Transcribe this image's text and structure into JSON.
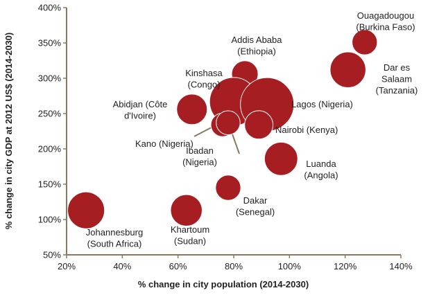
{
  "chart_data": {
    "type": "scatter",
    "title": "",
    "xlabel": "% change in city population (2014-2030)",
    "ylabel": "% change in city GDP at 2012 US$ (2014-2030)",
    "xlim": [
      20,
      140
    ],
    "ylim": [
      50,
      400
    ],
    "x_ticks": [
      "20%",
      "40%",
      "60%",
      "80%",
      "100%",
      "120%",
      "140%"
    ],
    "y_ticks": [
      "50%",
      "100%",
      "150%",
      "200%",
      "250%",
      "300%",
      "350%",
      "400%"
    ],
    "grid": false,
    "color": "#a71e22",
    "points": [
      {
        "name": [
          "Ouagadougou",
          "(Burkina Faso)"
        ],
        "x": 127,
        "y": 351,
        "size": 3
      },
      {
        "name": [
          "Addis Ababa",
          "(Ethiopia)"
        ],
        "x": 84,
        "y": 306,
        "size": 3.3
      },
      {
        "name": [
          "Dar es",
          "Salaam",
          "(Tanzania)"
        ],
        "x": 121,
        "y": 312,
        "size": 6
      },
      {
        "name": [
          "Kinshasa",
          "(Congo)"
        ],
        "x": 80,
        "y": 267,
        "size": 11
      },
      {
        "name": [
          "Lagos (Nigeria)"
        ],
        "x": 92,
        "y": 263,
        "size": 13.5
      },
      {
        "name": [
          "Abidjan (Côte",
          "d'Ivoire)"
        ],
        "x": 65,
        "y": 256,
        "size": 4.4
      },
      {
        "name": [
          "Nairobi (Kenya)"
        ],
        "x": 89,
        "y": 234,
        "size": 3.8
      },
      {
        "name": [
          "Kano (Nigeria)"
        ],
        "x": 76,
        "y": 234,
        "size": 2.6
      },
      {
        "name": [
          "Ibadan",
          "(Nigeria)"
        ],
        "x": 78,
        "y": 237,
        "size": 2.7
      },
      {
        "name": [
          "Luanda",
          "(Angola)"
        ],
        "x": 97,
        "y": 186,
        "size": 5.2
      },
      {
        "name": [
          "Dakar",
          "(Senegal)"
        ],
        "x": 78,
        "y": 145,
        "size": 3
      },
      {
        "name": [
          "Johannesburg",
          "(South Africa)"
        ],
        "x": 27,
        "y": 113,
        "size": 6.4
      },
      {
        "name": [
          "Khartoum",
          "(Sudan)"
        ],
        "x": 63,
        "y": 113,
        "size": 4.7
      }
    ]
  }
}
